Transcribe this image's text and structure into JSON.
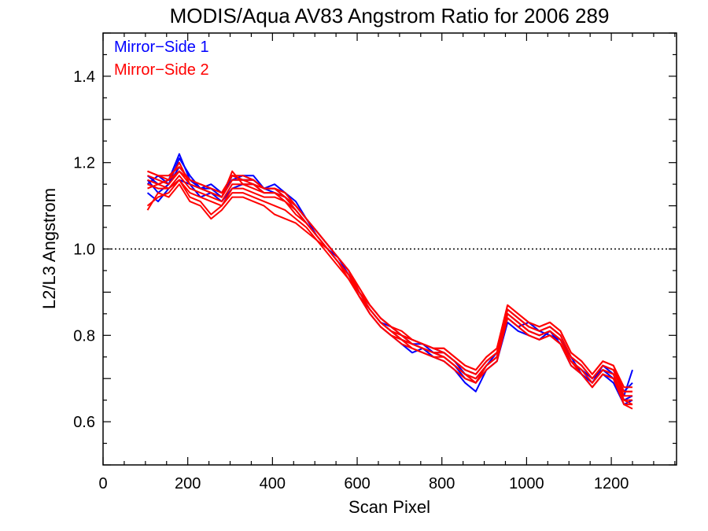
{
  "chart_data": {
    "type": "line",
    "title": "MODIS/Aqua AV83 Angstrom Ratio for 2006 289",
    "xlabel": "Scan Pixel",
    "ylabel": "L2/L3 Angstrom",
    "xlim": [
      0,
      1354
    ],
    "ylim": [
      0.5,
      1.5
    ],
    "x_ticks": [
      0,
      200,
      400,
      600,
      800,
      1000,
      1200
    ],
    "x_tick_labels": [
      "0",
      "200",
      "400",
      "600",
      "800",
      "1000",
      "1200"
    ],
    "y_ticks": [
      0.6,
      0.8,
      1.0,
      1.2,
      1.4
    ],
    "y_tick_labels": [
      "0.6",
      "0.8",
      "1.0",
      "1.2",
      "1.4"
    ],
    "reference_line": {
      "y": 1.0,
      "style": "dotted"
    },
    "legend": {
      "placement": "top-left",
      "entries": [
        {
          "label": "Mirror−Side 1",
          "color": "#0000ff"
        },
        {
          "label": "Mirror−Side 2",
          "color": "#ff0000"
        }
      ]
    },
    "x": [
      105,
      130,
      155,
      180,
      205,
      230,
      255,
      280,
      305,
      330,
      355,
      380,
      405,
      430,
      455,
      480,
      505,
      530,
      555,
      580,
      605,
      630,
      655,
      680,
      705,
      730,
      755,
      780,
      805,
      830,
      855,
      880,
      905,
      930,
      955,
      980,
      1005,
      1030,
      1055,
      1080,
      1105,
      1130,
      1155,
      1180,
      1205,
      1230,
      1250
    ],
    "series": [
      {
        "group": 1,
        "color": "#0000ff",
        "values": [
          1.15,
          1.17,
          1.15,
          1.21,
          1.17,
          1.14,
          1.13,
          1.12,
          1.17,
          1.16,
          1.16,
          1.14,
          1.13,
          1.12,
          1.1,
          1.07,
          1.03,
          1.0,
          0.98,
          0.95,
          0.9,
          0.86,
          0.83,
          0.82,
          0.8,
          0.78,
          0.77,
          0.76,
          0.76,
          0.74,
          0.71,
          0.7,
          0.73,
          0.75,
          0.85,
          0.83,
          0.81,
          0.8,
          0.81,
          0.79,
          0.74,
          0.72,
          0.7,
          0.72,
          0.7,
          0.66,
          0.72
        ]
      },
      {
        "group": 1,
        "color": "#0000ff",
        "values": [
          1.17,
          1.15,
          1.16,
          1.22,
          1.16,
          1.14,
          1.15,
          1.13,
          1.16,
          1.17,
          1.17,
          1.14,
          1.15,
          1.13,
          1.11,
          1.07,
          1.04,
          1.01,
          0.98,
          0.94,
          0.89,
          0.86,
          0.83,
          0.81,
          0.79,
          0.78,
          0.78,
          0.76,
          0.75,
          0.73,
          0.7,
          0.69,
          0.73,
          0.76,
          0.84,
          0.82,
          0.83,
          0.81,
          0.8,
          0.79,
          0.75,
          0.71,
          0.69,
          0.73,
          0.71,
          0.65,
          0.66
        ]
      },
      {
        "group": 1,
        "color": "#0000ff",
        "values": [
          1.13,
          1.11,
          1.14,
          1.16,
          1.15,
          1.12,
          1.13,
          1.11,
          1.14,
          1.15,
          1.15,
          1.13,
          1.13,
          1.12,
          1.09,
          1.06,
          1.03,
          1.0,
          0.97,
          0.94,
          0.89,
          0.85,
          0.82,
          0.8,
          0.78,
          0.76,
          0.77,
          0.75,
          0.74,
          0.72,
          0.69,
          0.67,
          0.72,
          0.74,
          0.83,
          0.81,
          0.8,
          0.79,
          0.81,
          0.78,
          0.73,
          0.71,
          0.68,
          0.71,
          0.69,
          0.64,
          0.65
        ]
      },
      {
        "group": 1,
        "color": "#0000ff",
        "values": [
          1.16,
          1.13,
          1.15,
          1.19,
          1.16,
          1.14,
          1.14,
          1.12,
          1.16,
          1.16,
          1.16,
          1.14,
          1.14,
          1.12,
          1.1,
          1.07,
          1.04,
          1.01,
          0.98,
          0.95,
          0.9,
          0.87,
          0.84,
          0.82,
          0.8,
          0.79,
          0.78,
          0.77,
          0.76,
          0.74,
          0.72,
          0.71,
          0.74,
          0.76,
          0.86,
          0.84,
          0.82,
          0.81,
          0.82,
          0.8,
          0.75,
          0.73,
          0.7,
          0.73,
          0.72,
          0.67,
          0.69
        ]
      },
      {
        "group": 2,
        "color": "#ff0000",
        "values": [
          1.18,
          1.17,
          1.17,
          1.19,
          1.16,
          1.15,
          1.14,
          1.13,
          1.17,
          1.16,
          1.16,
          1.14,
          1.14,
          1.13,
          1.1,
          1.07,
          1.04,
          1.01,
          0.98,
          0.95,
          0.91,
          0.87,
          0.84,
          0.82,
          0.81,
          0.79,
          0.78,
          0.77,
          0.77,
          0.75,
          0.73,
          0.72,
          0.75,
          0.77,
          0.87,
          0.85,
          0.83,
          0.82,
          0.83,
          0.81,
          0.76,
          0.74,
          0.71,
          0.74,
          0.73,
          0.68,
          0.68
        ]
      },
      {
        "group": 2,
        "color": "#ff0000",
        "values": [
          1.16,
          1.15,
          1.16,
          1.2,
          1.15,
          1.14,
          1.13,
          1.12,
          1.18,
          1.15,
          1.15,
          1.13,
          1.13,
          1.12,
          1.09,
          1.06,
          1.03,
          1.0,
          0.97,
          0.94,
          0.9,
          0.86,
          0.83,
          0.81,
          0.8,
          0.78,
          0.77,
          0.76,
          0.76,
          0.74,
          0.72,
          0.71,
          0.74,
          0.76,
          0.86,
          0.84,
          0.82,
          0.81,
          0.82,
          0.8,
          0.75,
          0.73,
          0.7,
          0.73,
          0.72,
          0.67,
          0.67
        ]
      },
      {
        "group": 2,
        "color": "#ff0000",
        "values": [
          1.09,
          1.13,
          1.12,
          1.15,
          1.11,
          1.1,
          1.07,
          1.09,
          1.12,
          1.12,
          1.11,
          1.1,
          1.08,
          1.07,
          1.06,
          1.04,
          1.02,
          1.0,
          0.97,
          0.94,
          0.89,
          0.86,
          0.83,
          0.81,
          0.79,
          0.78,
          0.77,
          0.76,
          0.75,
          0.73,
          0.71,
          0.7,
          0.73,
          0.75,
          0.85,
          0.83,
          0.81,
          0.8,
          0.81,
          0.79,
          0.74,
          0.72,
          0.69,
          0.72,
          0.71,
          0.65,
          0.65
        ]
      },
      {
        "group": 2,
        "color": "#ff0000",
        "values": [
          1.17,
          1.16,
          1.15,
          1.18,
          1.15,
          1.14,
          1.13,
          1.12,
          1.16,
          1.16,
          1.15,
          1.14,
          1.14,
          1.12,
          1.1,
          1.07,
          1.04,
          1.01,
          0.98,
          0.95,
          0.9,
          0.87,
          0.84,
          0.82,
          0.8,
          0.79,
          0.78,
          0.77,
          0.76,
          0.74,
          0.72,
          0.71,
          0.74,
          0.76,
          0.86,
          0.84,
          0.82,
          0.81,
          0.82,
          0.8,
          0.75,
          0.73,
          0.7,
          0.73,
          0.72,
          0.66,
          0.66
        ]
      },
      {
        "group": 2,
        "color": "#ff0000",
        "values": [
          1.15,
          1.14,
          1.14,
          1.17,
          1.14,
          1.13,
          1.12,
          1.11,
          1.15,
          1.15,
          1.14,
          1.13,
          1.13,
          1.11,
          1.09,
          1.06,
          1.03,
          1.0,
          0.97,
          0.94,
          0.9,
          0.86,
          0.83,
          0.81,
          0.79,
          0.78,
          0.77,
          0.76,
          0.75,
          0.73,
          0.71,
          0.7,
          0.73,
          0.75,
          0.85,
          0.83,
          0.81,
          0.8,
          0.81,
          0.79,
          0.74,
          0.72,
          0.69,
          0.72,
          0.71,
          0.65,
          0.64
        ]
      },
      {
        "group": 2,
        "color": "#ff0000",
        "values": [
          1.14,
          1.15,
          1.14,
          1.16,
          1.13,
          1.12,
          1.11,
          1.1,
          1.14,
          1.14,
          1.13,
          1.12,
          1.12,
          1.11,
          1.08,
          1.06,
          1.03,
          1.0,
          0.97,
          0.93,
          0.89,
          0.85,
          0.82,
          0.8,
          0.79,
          0.77,
          0.76,
          0.75,
          0.75,
          0.73,
          0.71,
          0.69,
          0.73,
          0.75,
          0.84,
          0.82,
          0.8,
          0.79,
          0.8,
          0.78,
          0.74,
          0.71,
          0.68,
          0.71,
          0.7,
          0.64,
          0.63
        ]
      },
      {
        "group": 2,
        "color": "#ff0000",
        "values": [
          1.18,
          1.17,
          1.16,
          1.18,
          1.16,
          1.15,
          1.14,
          1.13,
          1.17,
          1.17,
          1.16,
          1.14,
          1.14,
          1.13,
          1.1,
          1.07,
          1.04,
          1.01,
          0.98,
          0.95,
          0.91,
          0.87,
          0.84,
          0.82,
          0.8,
          0.79,
          0.78,
          0.77,
          0.77,
          0.75,
          0.73,
          0.72,
          0.75,
          0.77,
          0.87,
          0.85,
          0.83,
          0.82,
          0.83,
          0.81,
          0.76,
          0.74,
          0.71,
          0.74,
          0.73,
          0.67,
          0.67
        ]
      },
      {
        "group": 2,
        "color": "#ff0000",
        "values": [
          1.1,
          1.12,
          1.13,
          1.16,
          1.12,
          1.11,
          1.08,
          1.1,
          1.13,
          1.13,
          1.12,
          1.11,
          1.1,
          1.09,
          1.07,
          1.05,
          1.02,
          0.99,
          0.96,
          0.93,
          0.89,
          0.85,
          0.82,
          0.8,
          0.78,
          0.77,
          0.76,
          0.75,
          0.74,
          0.72,
          0.7,
          0.69,
          0.72,
          0.74,
          0.84,
          0.82,
          0.8,
          0.79,
          0.8,
          0.78,
          0.73,
          0.71,
          0.68,
          0.71,
          0.7,
          0.64,
          0.64
        ]
      }
    ]
  }
}
